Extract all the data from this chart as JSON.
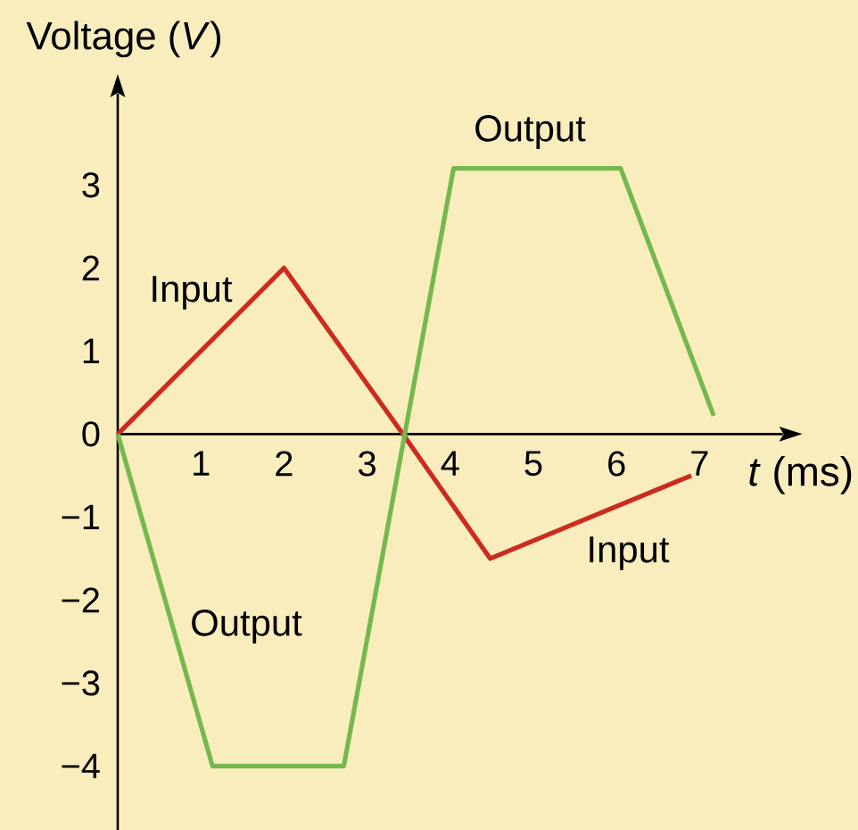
{
  "chart_data": {
    "type": "line",
    "xlabel": "*t* (ms)",
    "ylabel": "Voltage (*V*)",
    "xlim": [
      0,
      8
    ],
    "ylim": [
      -4.77,
      4.1
    ],
    "xticks": [
      1,
      2,
      3,
      4,
      5,
      6,
      7
    ],
    "yticks": [
      {
        "value": -4,
        "label": "−4"
      },
      {
        "value": -3,
        "label": "−3"
      },
      {
        "value": -2,
        "label": "−2"
      },
      {
        "value": -1,
        "label": "−1"
      },
      0,
      1,
      2,
      3
    ],
    "series": [
      {
        "color": "#cc2b1f",
        "x": [
          0,
          2,
          3.43,
          4.48,
          6.9
        ],
        "values": [
          0,
          2,
          0,
          -1.5,
          -0.5
        ]
      },
      {
        "color": "#74b84f",
        "x": [
          0,
          1.14,
          2.72,
          4.04,
          6.05,
          7.17
        ],
        "values": [
          0,
          -4,
          -4,
          3.2,
          3.2,
          0.22
        ]
      }
    ],
    "annotations": [
      "Input",
      "Output",
      "Output",
      "Input"
    ]
  }
}
